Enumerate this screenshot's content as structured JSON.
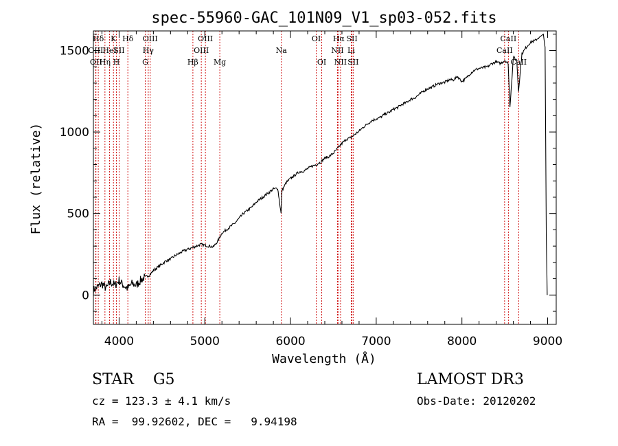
{
  "chart_data": {
    "type": "line",
    "title": "spec-55960-GAC_101N09_V1_sp03-052.fits",
    "xlabel": "Wavelength (Å)",
    "ylabel": "Flux (relative)",
    "xlim": [
      3700,
      9100
    ],
    "ylim": [
      -180,
      1620
    ],
    "xticks": [
      4000,
      5000,
      6000,
      7000,
      8000,
      9000
    ],
    "yticks": [
      0,
      500,
      1000,
      1500
    ],
    "grid": false,
    "series": [
      {
        "name": "flux",
        "x": [
          3700,
          3750,
          3800,
          3850,
          3900,
          3950,
          4000,
          4050,
          4100,
          4150,
          4200,
          4250,
          4300,
          4350,
          4400,
          4450,
          4500,
          4550,
          4600,
          4650,
          4700,
          4750,
          4800,
          4850,
          4900,
          4950,
          5000,
          5050,
          5100,
          5150,
          5200,
          5250,
          5300,
          5350,
          5400,
          5450,
          5500,
          5550,
          5600,
          5650,
          5700,
          5750,
          5800,
          5850,
          5890,
          5900,
          5950,
          6000,
          6050,
          6100,
          6150,
          6200,
          6250,
          6300,
          6350,
          6400,
          6450,
          6500,
          6550,
          6600,
          6650,
          6700,
          6750,
          6800,
          6850,
          6900,
          6950,
          7000,
          7050,
          7100,
          7150,
          7200,
          7250,
          7300,
          7350,
          7400,
          7450,
          7500,
          7550,
          7600,
          7650,
          7700,
          7750,
          7800,
          7850,
          7900,
          7950,
          8000,
          8050,
          8100,
          8150,
          8200,
          8250,
          8300,
          8350,
          8400,
          8450,
          8500,
          8540,
          8560,
          8600,
          8640,
          8660,
          8700,
          8750,
          8800,
          8850,
          8900,
          8950,
          8970,
          8985,
          8995
        ],
        "y": [
          30,
          50,
          70,
          40,
          80,
          60,
          90,
          60,
          40,
          70,
          60,
          90,
          110,
          120,
          150,
          170,
          190,
          210,
          220,
          240,
          255,
          270,
          280,
          290,
          300,
          310,
          305,
          300,
          295,
          330,
          380,
          400,
          420,
          440,
          470,
          500,
          520,
          540,
          570,
          590,
          610,
          630,
          650,
          655,
          500,
          640,
          690,
          715,
          735,
          755,
          760,
          775,
          790,
          800,
          815,
          840,
          850,
          870,
          900,
          930,
          955,
          965,
          985,
          1005,
          1030,
          1050,
          1070,
          1080,
          1090,
          1110,
          1120,
          1140,
          1150,
          1170,
          1180,
          1200,
          1210,
          1230,
          1250,
          1265,
          1275,
          1290,
          1300,
          1305,
          1320,
          1320,
          1340,
          1310,
          1330,
          1360,
          1380,
          1390,
          1395,
          1400,
          1420,
          1430,
          1420,
          1440,
          1420,
          1150,
          1460,
          1440,
          1250,
          1480,
          1520,
          1550,
          1560,
          1580,
          1600,
          1520,
          340,
          0
        ]
      }
    ],
    "line_marks": [
      {
        "label": "Hδ",
        "x": 3757,
        "row": 1
      },
      {
        "label": "OIII",
        "x": 3727,
        "row": 2
      },
      {
        "label": "OII",
        "x": 3730,
        "row": 3
      },
      {
        "label": "HeI",
        "x": 3889,
        "row": 2
      },
      {
        "label": "Hη",
        "x": 3835,
        "row": 3
      },
      {
        "label": "K",
        "x": 3934,
        "row": 1
      },
      {
        "label": "SII",
        "x": 4000,
        "row": 2
      },
      {
        "label": "H",
        "x": 3969,
        "row": 3
      },
      {
        "label": "Hδ",
        "x": 4102,
        "row": 1
      },
      {
        "label": "OIII",
        "x": 4363,
        "row": 1
      },
      {
        "label": "Hγ",
        "x": 4340,
        "row": 2
      },
      {
        "label": "G",
        "x": 4305,
        "row": 3
      },
      {
        "label": "OIII",
        "x": 5007,
        "row": 1
      },
      {
        "label": "OIII",
        "x": 4959,
        "row": 2
      },
      {
        "label": "Hβ",
        "x": 4861,
        "row": 3
      },
      {
        "label": "Mg",
        "x": 5175,
        "row": 3
      },
      {
        "label": "Na",
        "x": 5893,
        "row": 2
      },
      {
        "label": "OI",
        "x": 6300,
        "row": 1
      },
      {
        "label": "OI",
        "x": 6364,
        "row": 3
      },
      {
        "label": "Hα",
        "x": 6563,
        "row": 1
      },
      {
        "label": "SII",
        "x": 6717,
        "row": 1
      },
      {
        "label": "NII",
        "x": 6548,
        "row": 2
      },
      {
        "label": "Li",
        "x": 6708,
        "row": 2
      },
      {
        "label": "NII",
        "x": 6584,
        "row": 3
      },
      {
        "label": "SII",
        "x": 6731,
        "row": 3
      },
      {
        "label": "CaII",
        "x": 8542,
        "row": 1
      },
      {
        "label": "CaII",
        "x": 8498,
        "row": 2
      },
      {
        "label": "CaII",
        "x": 8662,
        "row": 3
      }
    ]
  },
  "info": {
    "class_line": "STAR    G5",
    "survey": "LAMOST DR3",
    "cz_line": "cz = 123.3 ± 4.1 km/s",
    "obs_date": "Obs-Date: 20120202",
    "radec_line": "RA =  99.92602, DEC =   9.94198"
  },
  "colors": {
    "line_marker": "#cc0000",
    "spectrum": "#000000",
    "axes": "#000000"
  }
}
